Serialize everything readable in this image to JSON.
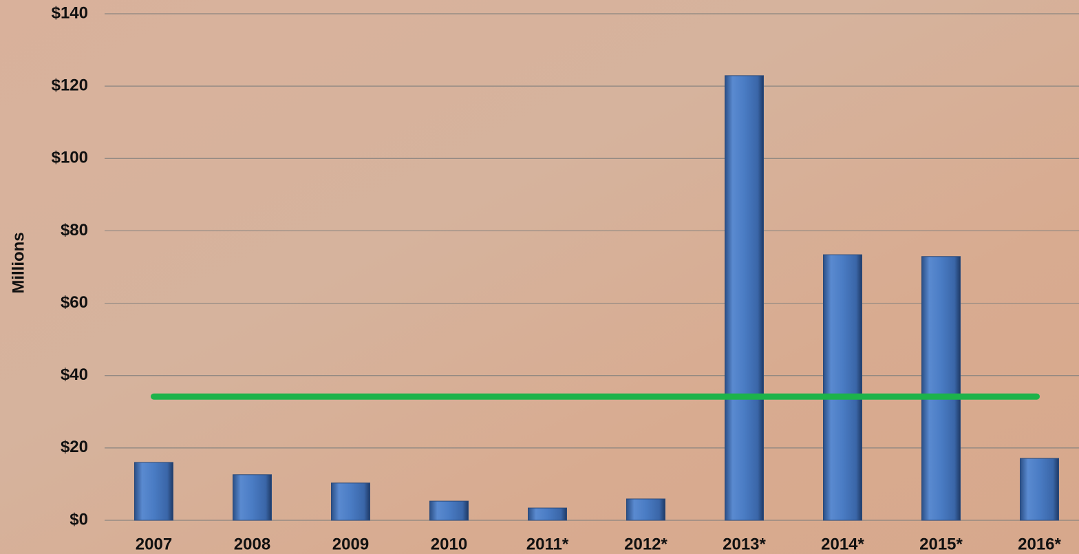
{
  "chart_data": {
    "type": "bar",
    "y_axis_label": "Millions",
    "categories": [
      "2007",
      "2008",
      "2009",
      "2010",
      "2011*",
      "2012*",
      "2013*",
      "2014*",
      "2015*",
      "2016*"
    ],
    "values": [
      16.0,
      12.6,
      10.3,
      5.3,
      3.4,
      5.9,
      122.9,
      73.4,
      72.9,
      17.1
    ],
    "color": "#4a7cc4",
    "reference_line": {
      "value": 34.2,
      "color": "#1db34a"
    },
    "ylim": [
      0,
      140
    ],
    "yticks": [
      {
        "value": 0,
        "label": "$0"
      },
      {
        "value": 20,
        "label": "$20"
      },
      {
        "value": 40,
        "label": "$40"
      },
      {
        "value": 60,
        "label": "$60"
      },
      {
        "value": 80,
        "label": "$80"
      },
      {
        "value": 100,
        "label": "$100"
      },
      {
        "value": 120,
        "label": "$120"
      },
      {
        "value": 140,
        "label": "$140"
      }
    ],
    "grid": true
  }
}
